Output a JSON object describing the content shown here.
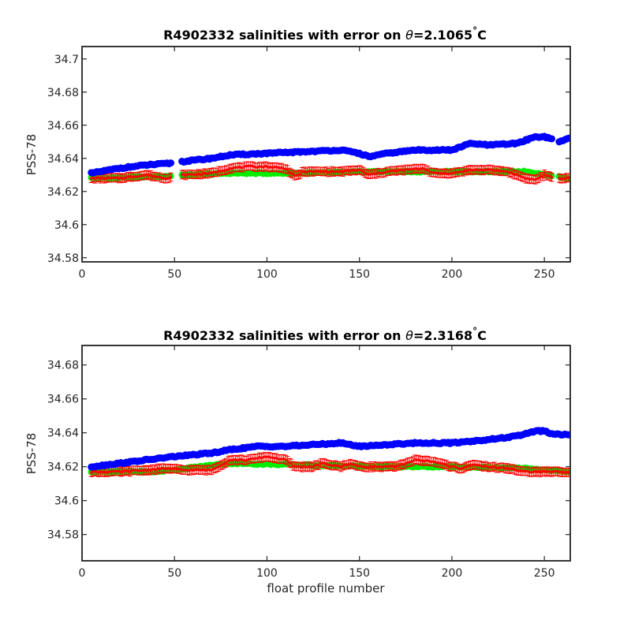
{
  "figure": {
    "xlabel": "float profile number",
    "ylabel": "PSS-78"
  },
  "chart_data": [
    {
      "type": "scatter",
      "title_prefix": "R4902332 salinities with error on ",
      "title_theta": "θ",
      "title_value": "=2.1065",
      "title_degree": "°",
      "title_unit": "C",
      "xlabel": "",
      "ylabel": "PSS-78",
      "xlim": [
        0,
        264
      ],
      "ylim": [
        34.5775,
        34.7075
      ],
      "x_ticks": [
        0,
        50,
        100,
        150,
        200,
        250
      ],
      "y_ticks": [
        34.58,
        34.6,
        34.62,
        34.64,
        34.66,
        34.68,
        34.7
      ],
      "y_tick_labels": [
        "34.58",
        "34.6",
        "34.62",
        "34.64",
        "34.66",
        "34.68",
        "34.7"
      ],
      "gaps": [
        [
          48,
          54
        ],
        [
          254,
          258
        ]
      ],
      "x_range": [
        5,
        263
      ],
      "series": [
        {
          "role": "uncalibrated",
          "color": "#0000ff",
          "anchors": [
            [
              5,
              34.631
            ],
            [
              20,
              34.634
            ],
            [
              35,
              34.636
            ],
            [
              48,
              34.637
            ],
            [
              54,
              34.638
            ],
            [
              70,
              34.64
            ],
            [
              80,
              34.642
            ],
            [
              100,
              34.643
            ],
            [
              120,
              34.644
            ],
            [
              140,
              34.645
            ],
            [
              150,
              34.643
            ],
            [
              155,
              34.641
            ],
            [
              165,
              34.643
            ],
            [
              180,
              34.645
            ],
            [
              200,
              34.645
            ],
            [
              210,
              34.649
            ],
            [
              220,
              34.648
            ],
            [
              235,
              34.649
            ],
            [
              245,
              34.653
            ],
            [
              250,
              34.653
            ],
            [
              254,
              34.652
            ],
            [
              258,
              34.65
            ],
            [
              263,
              34.652
            ]
          ]
        },
        {
          "role": "mapped",
          "color": "#00ee00",
          "anchors": [
            [
              5,
              34.628
            ],
            [
              40,
              34.629
            ],
            [
              80,
              34.631
            ],
            [
              120,
              34.631
            ],
            [
              160,
              34.632
            ],
            [
              200,
              34.632
            ],
            [
              240,
              34.632
            ],
            [
              263,
              34.628
            ]
          ]
        },
        {
          "role": "calibrated",
          "color": "#ff0000",
          "anchors": [
            [
              5,
              34.628
            ],
            [
              20,
              34.628
            ],
            [
              35,
              34.63
            ],
            [
              45,
              34.628
            ],
            [
              55,
              34.63
            ],
            [
              70,
              34.631
            ],
            [
              80,
              34.634
            ],
            [
              90,
              34.635
            ],
            [
              100,
              34.635
            ],
            [
              110,
              34.634
            ],
            [
              115,
              34.629
            ],
            [
              120,
              34.632
            ],
            [
              130,
              34.632
            ],
            [
              140,
              34.632
            ],
            [
              150,
              34.633
            ],
            [
              155,
              34.63
            ],
            [
              165,
              34.632
            ],
            [
              175,
              34.633
            ],
            [
              185,
              34.634
            ],
            [
              190,
              34.631
            ],
            [
              200,
              34.631
            ],
            [
              210,
              34.633
            ],
            [
              220,
              34.633
            ],
            [
              230,
              34.632
            ],
            [
              240,
              34.628
            ],
            [
              245,
              34.627
            ],
            [
              250,
              34.63
            ],
            [
              255,
              34.628
            ],
            [
              263,
              34.628
            ]
          ],
          "error": 0.0025
        }
      ]
    },
    {
      "type": "scatter",
      "title_prefix": "R4902332 salinities with error on ",
      "title_theta": "θ",
      "title_value": "=2.3168",
      "title_degree": "°",
      "title_unit": "C",
      "xlabel": "float profile number",
      "ylabel": "PSS-78",
      "xlim": [
        0,
        264
      ],
      "ylim": [
        34.5645,
        34.6915
      ],
      "x_ticks": [
        0,
        50,
        100,
        150,
        200,
        250
      ],
      "y_ticks": [
        34.58,
        34.6,
        34.62,
        34.64,
        34.66,
        34.68
      ],
      "y_tick_labels": [
        "34.58",
        "34.6",
        "34.62",
        "34.64",
        "34.66",
        "34.68"
      ],
      "gaps": [],
      "x_range": [
        5,
        263
      ],
      "series": [
        {
          "role": "uncalibrated",
          "color": "#0000ff",
          "anchors": [
            [
              5,
              34.62
            ],
            [
              20,
              34.622
            ],
            [
              35,
              34.624
            ],
            [
              50,
              34.626
            ],
            [
              60,
              34.627
            ],
            [
              70,
              34.628
            ],
            [
              80,
              34.63
            ],
            [
              95,
              34.632
            ],
            [
              110,
              34.632
            ],
            [
              125,
              34.633
            ],
            [
              140,
              34.634
            ],
            [
              150,
              34.632
            ],
            [
              165,
              34.633
            ],
            [
              180,
              34.634
            ],
            [
              200,
              34.634
            ],
            [
              220,
              34.636
            ],
            [
              235,
              34.638
            ],
            [
              245,
              34.641
            ],
            [
              250,
              34.641
            ],
            [
              255,
              34.639
            ],
            [
              263,
              34.639
            ]
          ]
        },
        {
          "role": "mapped",
          "color": "#00ee00",
          "anchors": [
            [
              5,
              34.617
            ],
            [
              40,
              34.617
            ],
            [
              80,
              34.622
            ],
            [
              120,
              34.621
            ],
            [
              160,
              34.62
            ],
            [
              200,
              34.62
            ],
            [
              240,
              34.619
            ],
            [
              263,
              34.617
            ]
          ]
        },
        {
          "role": "calibrated",
          "color": "#ff0000",
          "anchors": [
            [
              5,
              34.617
            ],
            [
              20,
              34.617
            ],
            [
              35,
              34.618
            ],
            [
              45,
              34.619
            ],
            [
              55,
              34.618
            ],
            [
              70,
              34.618
            ],
            [
              80,
              34.624
            ],
            [
              90,
              34.624
            ],
            [
              100,
              34.626
            ],
            [
              110,
              34.624
            ],
            [
              115,
              34.62
            ],
            [
              125,
              34.62
            ],
            [
              130,
              34.622
            ],
            [
              140,
              34.62
            ],
            [
              145,
              34.622
            ],
            [
              150,
              34.62
            ],
            [
              160,
              34.62
            ],
            [
              170,
              34.62
            ],
            [
              180,
              34.624
            ],
            [
              190,
              34.623
            ],
            [
              200,
              34.62
            ],
            [
              205,
              34.619
            ],
            [
              210,
              34.621
            ],
            [
              220,
              34.62
            ],
            [
              230,
              34.619
            ],
            [
              240,
              34.617
            ],
            [
              250,
              34.617
            ],
            [
              263,
              34.617
            ]
          ],
          "error": 0.0025
        }
      ]
    }
  ]
}
